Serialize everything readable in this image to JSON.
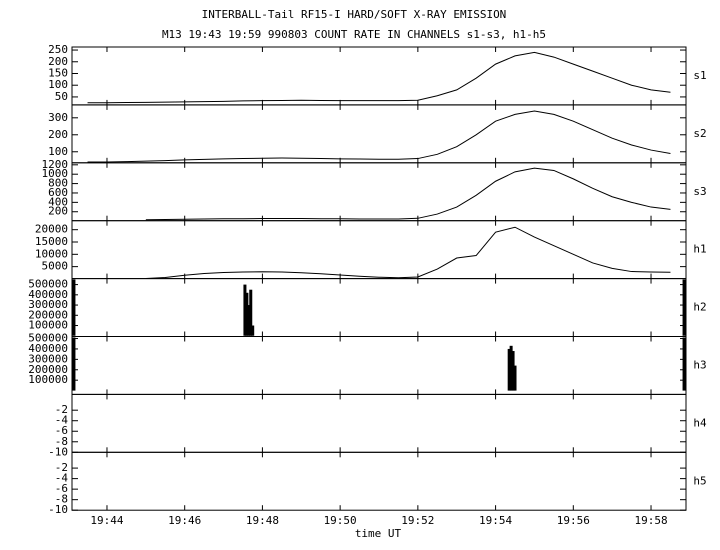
{
  "title": "INTERBALL-Tail RF15-I HARD/SOFT X-RAY EMISSION",
  "subtitle": "M13  19:43 19:59 990803  COUNT RATE IN CHANNELS s1-s3, h1-h5",
  "x_label": "time UT",
  "xlim": [
    43.1,
    58.9
  ],
  "xticks": [
    {
      "value": 44,
      "label": "19:44"
    },
    {
      "value": 46,
      "label": "19:46"
    },
    {
      "value": 48,
      "label": "19:48"
    },
    {
      "value": 50,
      "label": "19:50"
    },
    {
      "value": 52,
      "label": "19:52"
    },
    {
      "value": 54,
      "label": "19:54"
    },
    {
      "value": 56,
      "label": "19:56"
    },
    {
      "value": 58,
      "label": "19:58"
    }
  ],
  "chart_data": [
    {
      "type": "line",
      "name": "s1",
      "color": "#000000",
      "ylim": [
        16,
        263
      ],
      "yticks": [
        50,
        100,
        150,
        200,
        250
      ],
      "x": [
        43.5,
        44,
        44.5,
        45,
        45.5,
        46,
        46.5,
        47,
        47.5,
        48,
        48.5,
        49,
        49.5,
        50,
        50.5,
        51,
        51.5,
        52,
        52.5,
        53,
        53.5,
        54,
        54.5,
        55,
        55.5,
        56,
        56.5,
        57,
        57.5,
        58,
        58.5
      ],
      "values": [
        25,
        25,
        26,
        27,
        28,
        29,
        30,
        31,
        33,
        34,
        35,
        36,
        35,
        34,
        34,
        34,
        34,
        36,
        55,
        80,
        130,
        190,
        225,
        240,
        220,
        190,
        160,
        130,
        100,
        80,
        70
      ]
    },
    {
      "type": "line",
      "name": "s2",
      "color": "#000000",
      "ylim": [
        35,
        376
      ],
      "yticks": [
        100,
        200,
        300
      ],
      "x": [
        43.5,
        44,
        44.5,
        45,
        45.5,
        46,
        46.5,
        47,
        47.5,
        48,
        48.5,
        49,
        49.5,
        50,
        50.5,
        51,
        51.5,
        52,
        52.5,
        53,
        53.5,
        54,
        54.5,
        55,
        55.5,
        56,
        56.5,
        57,
        57.5,
        58,
        58.5
      ],
      "values": [
        40,
        40,
        42,
        45,
        48,
        52,
        55,
        58,
        60,
        62,
        63,
        62,
        60,
        58,
        57,
        56,
        56,
        60,
        85,
        130,
        200,
        280,
        320,
        340,
        320,
        280,
        230,
        180,
        140,
        110,
        90
      ]
    },
    {
      "type": "line",
      "name": "s3",
      "color": "#000000",
      "ylim": [
        9,
        1243
      ],
      "yticks": [
        200,
        400,
        600,
        800,
        1000,
        1200
      ],
      "x": [
        43.5,
        44,
        44.5,
        45,
        45.5,
        46,
        46.5,
        47,
        47.5,
        48,
        48.5,
        49,
        49.5,
        50,
        50.5,
        51,
        51.5,
        52,
        52.5,
        53,
        53.5,
        54,
        54.5,
        55,
        55.5,
        56,
        56.5,
        57,
        57.5,
        58,
        58.5
      ],
      "values": [
        null,
        null,
        null,
        30,
        35,
        40,
        45,
        50,
        50,
        55,
        55,
        55,
        50,
        50,
        45,
        45,
        45,
        60,
        150,
        300,
        550,
        850,
        1050,
        1130,
        1080,
        900,
        700,
        520,
        400,
        300,
        250
      ]
    },
    {
      "type": "line",
      "name": "h1",
      "color": "#000000",
      "ylim": [
        140,
        23650
      ],
      "yticks": [
        5000,
        10000,
        15000,
        20000
      ],
      "x": [
        43.5,
        44,
        44.5,
        45,
        45.5,
        46,
        46.5,
        47,
        47.5,
        48,
        48.5,
        49,
        49.5,
        50,
        50.5,
        51,
        51.5,
        52,
        52.5,
        53,
        53.5,
        54,
        54.5,
        55,
        55.5,
        56,
        56.5,
        57,
        57.5,
        58,
        58.5
      ],
      "values": [
        null,
        null,
        null,
        200,
        600,
        1500,
        2200,
        2600,
        2800,
        2900,
        2800,
        2500,
        2100,
        1600,
        1100,
        700,
        500,
        800,
        4000,
        8500,
        9500,
        19000,
        21000,
        17000,
        13500,
        10000,
        6500,
        4300,
        3000,
        2800,
        2700
      ]
    },
    {
      "type": "bar",
      "name": "h2",
      "color": "#000000",
      "ylim": [
        -7300,
        558500
      ],
      "yticks": [
        100000,
        200000,
        300000,
        400000,
        500000
      ],
      "x": [
        43.15,
        47.55,
        47.6,
        47.65,
        47.7,
        47.75,
        58.85
      ],
      "values": [
        550000,
        500000,
        420000,
        300000,
        450000,
        100000,
        550000
      ]
    },
    {
      "type": "bar",
      "name": "h3",
      "color": "#000000",
      "ylim": [
        -36600,
        519500
      ],
      "yticks": [
        100000,
        200000,
        300000,
        400000,
        500000
      ],
      "x": [
        43.15,
        54.35,
        54.4,
        54.45,
        54.5,
        58.85
      ],
      "values": [
        510000,
        400000,
        430000,
        380000,
        240000,
        510000
      ]
    },
    {
      "type": "line",
      "name": "h4",
      "color": "#000000",
      "ylim": [
        -10,
        1
      ],
      "yticks": [
        -10,
        -8,
        -6,
        -4,
        -2
      ]
    },
    {
      "type": "line",
      "name": "h5",
      "color": "#000000",
      "ylim": [
        -10,
        1
      ],
      "yticks": [
        -10,
        -8,
        -6,
        -4,
        -2
      ]
    }
  ]
}
